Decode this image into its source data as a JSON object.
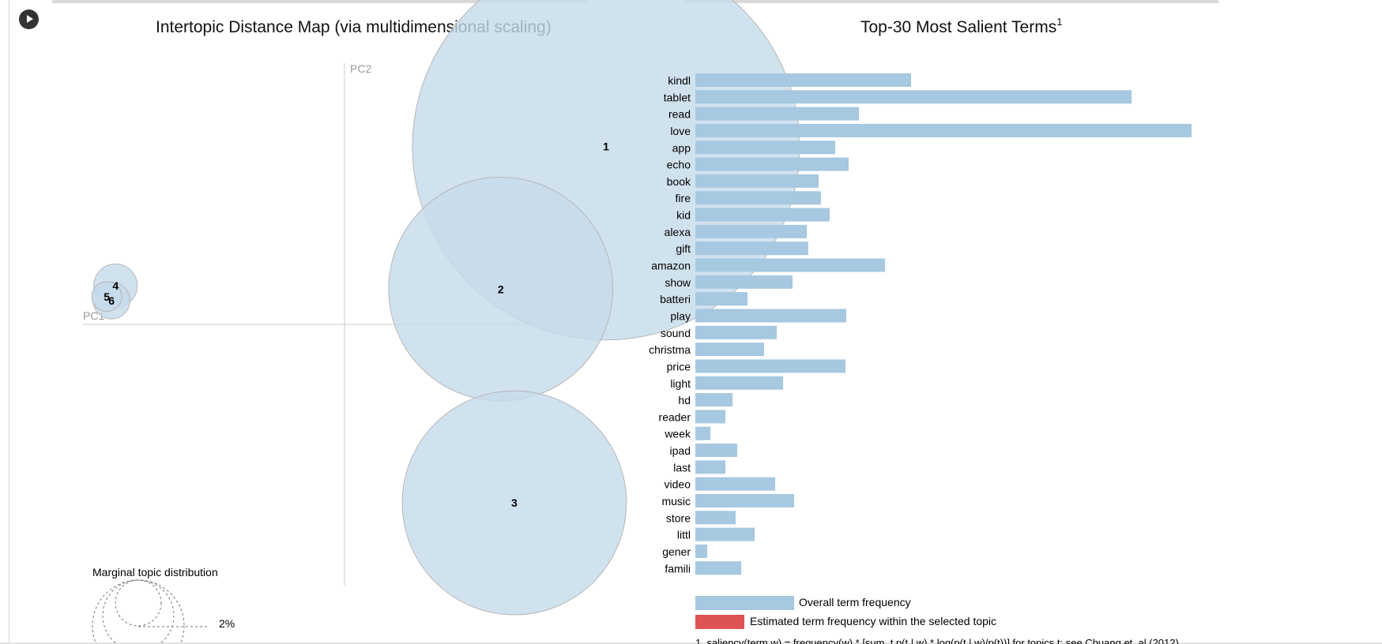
{
  "left_panel": {
    "title": "Intertopic Distance Map (via multidimensional scaling)",
    "pc1_label": "PC1",
    "pc2_label": "PC2",
    "marginal_title": "Marginal topic distribution",
    "marginal_pct": "2%"
  },
  "right_panel": {
    "title": "Top-30 Most Salient Terms",
    "title_sup": "1",
    "legend_overall": "Overall term frequency",
    "legend_estimated": "Estimated term frequency within the selected topic",
    "footnote": "1. saliency(term w) = frequency(w) * [sum_t p(t | w) * log(p(t | w)/p(t))] for topics t; see Chuang et. al (2012)"
  },
  "colors": {
    "bubble_fill": "#c6dbeb",
    "bubble_stroke": "#b6b6b6",
    "bar_overall": "#a6c8e0",
    "bar_estimated": "#de5353",
    "axis": "#cccccc"
  },
  "chart_data": [
    {
      "type": "scatter",
      "title": "Intertopic Distance Map (via multidimensional scaling)",
      "xlabel": "PC1",
      "ylabel": "PC2",
      "topics": [
        {
          "label": "1",
          "x": 0.385,
          "y": 0.262,
          "size": 0.285
        },
        {
          "label": "2",
          "x": 0.23,
          "y": 0.052,
          "size": 0.165
        },
        {
          "label": "3",
          "x": 0.25,
          "y": -0.263,
          "size": 0.165
        },
        {
          "label": "4",
          "x": -0.337,
          "y": 0.057,
          "size": 0.032
        },
        {
          "label": "5",
          "x": -0.35,
          "y": 0.041,
          "size": 0.022
        },
        {
          "label": "6",
          "x": -0.343,
          "y": 0.035,
          "size": 0.027
        }
      ],
      "xlim": [
        -0.385,
        0.385
      ],
      "ylim": [
        -0.385,
        0.385
      ]
    },
    {
      "type": "bar",
      "orientation": "horizontal",
      "title": "Top-30 Most Salient Terms",
      "categories": [
        "kindl",
        "tablet",
        "read",
        "love",
        "app",
        "echo",
        "book",
        "fire",
        "kid",
        "alexa",
        "gift",
        "amazon",
        "show",
        "batteri",
        "play",
        "sound",
        "christma",
        "price",
        "light",
        "hd",
        "reader",
        "week",
        "ipad",
        "last",
        "video",
        "music",
        "store",
        "littl",
        "gener",
        "famili"
      ],
      "series": [
        {
          "name": "Overall term frequency",
          "values": [
            273,
            552,
            207,
            628,
            177,
            194,
            156,
            159,
            170,
            141,
            143,
            240,
            123,
            66,
            191,
            103,
            87,
            190,
            111,
            47,
            38,
            19,
            53,
            38,
            101,
            125,
            51,
            75,
            15,
            58
          ]
        }
      ],
      "xlim": [
        0,
        628
      ]
    }
  ]
}
